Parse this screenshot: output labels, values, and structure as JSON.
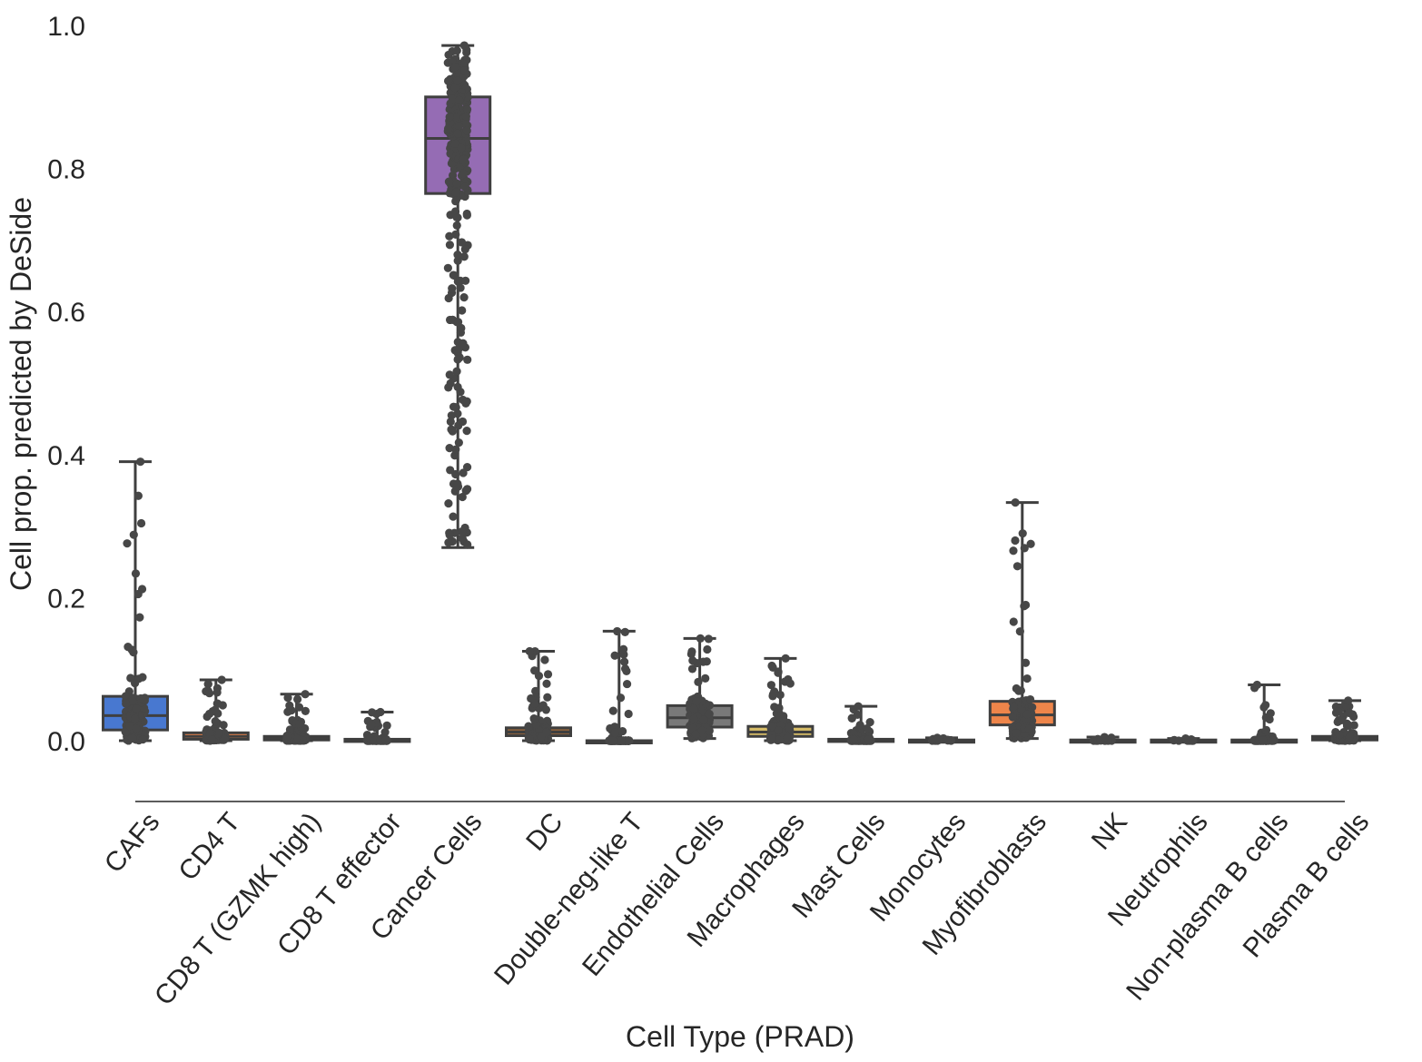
{
  "chart_data": {
    "type": "box",
    "title": "",
    "xlabel": "Cell Type (PRAD)",
    "ylabel": "Cell prop. predicted by DeSide",
    "ylim": [
      -0.09,
      1.0
    ],
    "yticks": [
      "0.0",
      "0.2",
      "0.4",
      "0.6",
      "0.8",
      "1.0"
    ],
    "ytick_values": [
      0.0,
      0.2,
      0.4,
      0.6,
      0.8,
      1.0
    ],
    "grid": false,
    "overlay": "strip points (individual samples)",
    "point_color": "#474747",
    "categories": [
      "CAFs",
      "CD4 T",
      "CD8 T (GZMK high)",
      "CD8 T effector",
      "Cancer Cells",
      "DC",
      "Double-neg-like T",
      "Endothelial Cells",
      "Macrophages",
      "Mast Cells",
      "Monocytes",
      "Myofibroblasts",
      "NK",
      "Neutrophils",
      "Non-plasma B cells",
      "Plasma B cells"
    ],
    "boxes": [
      {
        "category": "CAFs",
        "color": "#4878d0",
        "whisker_low": 0.0,
        "q1": 0.015,
        "median": 0.035,
        "q3": 0.062,
        "whisker_high": 0.39,
        "points_max": 0.39
      },
      {
        "category": "CD4 T",
        "color": "#ee854a",
        "whisker_low": 0.0,
        "q1": 0.002,
        "median": 0.006,
        "q3": 0.011,
        "whisker_high": 0.085,
        "points_max": 0.085
      },
      {
        "category": "CD8 T (GZMK high)",
        "color": "#6acc64",
        "whisker_low": 0.0,
        "q1": 0.001,
        "median": 0.003,
        "q3": 0.006,
        "whisker_high": 0.065,
        "points_max": 0.065
      },
      {
        "category": "CD8 T effector",
        "color": "#d65f5f",
        "whisker_low": 0.0,
        "q1": 0.0,
        "median": 0.001,
        "q3": 0.002,
        "whisker_high": 0.04,
        "points_max": 0.04
      },
      {
        "category": "Cancer Cells",
        "color": "#956cb4",
        "whisker_low": 0.27,
        "q1": 0.765,
        "median": 0.842,
        "q3": 0.9,
        "whisker_high": 0.972,
        "points_max": 0.972
      },
      {
        "category": "DC",
        "color": "#8c613c",
        "whisker_low": 0.0,
        "q1": 0.007,
        "median": 0.012,
        "q3": 0.018,
        "whisker_high": 0.125,
        "points_max": 0.125
      },
      {
        "category": "Double-neg-like T",
        "color": "#dc7ec0",
        "whisker_low": 0.0,
        "q1": 0.0,
        "median": 0.0,
        "q3": 0.0,
        "whisker_high": 0.153,
        "points_max": 0.153
      },
      {
        "category": "Endothelial Cells",
        "color": "#797979",
        "whisker_low": 0.003,
        "q1": 0.019,
        "median": 0.032,
        "q3": 0.049,
        "whisker_high": 0.143,
        "points_max": 0.143
      },
      {
        "category": "Macrophages",
        "color": "#d5bb67",
        "whisker_low": 0.0,
        "q1": 0.006,
        "median": 0.012,
        "q3": 0.02,
        "whisker_high": 0.115,
        "points_max": 0.115
      },
      {
        "category": "Mast Cells",
        "color": "#82c6e2",
        "whisker_low": 0.0,
        "q1": 0.0,
        "median": 0.001,
        "q3": 0.002,
        "whisker_high": 0.048,
        "points_max": 0.048
      },
      {
        "category": "Monocytes",
        "color": "#4878d0",
        "whisker_low": 0.0,
        "q1": 0.0,
        "median": 0.0,
        "q3": 0.001,
        "whisker_high": 0.004,
        "points_max": 0.004
      },
      {
        "category": "Myofibroblasts",
        "color": "#ee854a",
        "whisker_low": 0.003,
        "q1": 0.022,
        "median": 0.036,
        "q3": 0.055,
        "whisker_high": 0.333,
        "points_max": 0.333
      },
      {
        "category": "NK",
        "color": "#6acc64",
        "whisker_low": 0.0,
        "q1": 0.0,
        "median": 0.0,
        "q3": 0.001,
        "whisker_high": 0.005,
        "points_max": 0.005
      },
      {
        "category": "Neutrophils",
        "color": "#d65f5f",
        "whisker_low": 0.0,
        "q1": 0.0,
        "median": 0.0,
        "q3": 0.001,
        "whisker_high": 0.003,
        "points_max": 0.003
      },
      {
        "category": "Non-plasma B cells",
        "color": "#956cb4",
        "whisker_low": 0.0,
        "q1": 0.0,
        "median": 0.0,
        "q3": 0.001,
        "whisker_high": 0.078,
        "points_max": 0.078
      },
      {
        "category": "Plasma B cells",
        "color": "#8c613c",
        "whisker_low": 0.0,
        "q1": 0.001,
        "median": 0.003,
        "q3": 0.006,
        "whisker_high": 0.056,
        "points_max": 0.056
      }
    ]
  }
}
